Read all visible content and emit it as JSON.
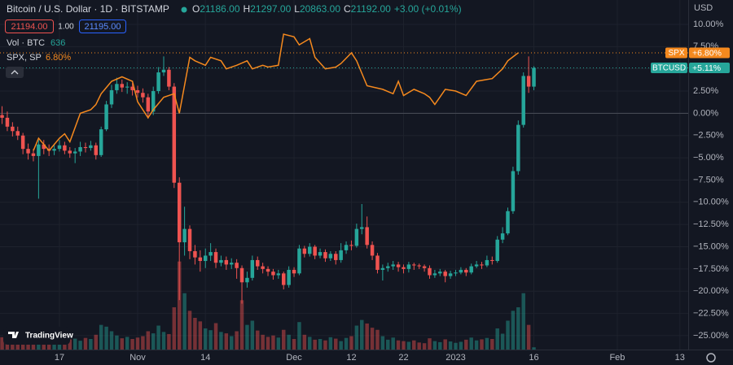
{
  "chart_data": {
    "type": "candlestick",
    "title": "Bitcoin / U.S. Dollar · 1D · BITSTAMP",
    "up_color": "#26a69a",
    "down_color": "#ef5350",
    "grid": true,
    "y_axis_label": "USD",
    "xlim": [
      -0.4,
      131.6
    ],
    "xticks": [
      {
        "value": 11,
        "label": "17"
      },
      {
        "value": 26,
        "label": "Nov"
      },
      {
        "value": 39,
        "label": "14"
      },
      {
        "value": 56,
        "label": "Dec"
      },
      {
        "value": 67,
        "label": "12"
      },
      {
        "value": 77,
        "label": "22"
      },
      {
        "value": 87,
        "label": "2023"
      },
      {
        "value": 102,
        "label": "16"
      },
      {
        "value": 118,
        "label": "Feb"
      },
      {
        "value": 130,
        "label": "13"
      }
    ],
    "ylim": [
      -26.56,
      12.74
    ],
    "yticks": [
      {
        "value": 10,
        "label": "10.00%"
      },
      {
        "value": 7.5,
        "label": "7.50%"
      },
      {
        "value": 5,
        "label": "5.00%"
      },
      {
        "value": 2.5,
        "label": "2.50%"
      },
      {
        "value": 0,
        "label": "0.00%"
      },
      {
        "value": -2.5,
        "label": "−2.50%"
      },
      {
        "value": -5,
        "label": "−5.00%"
      },
      {
        "value": -7.5,
        "label": "−7.50%"
      },
      {
        "value": -10,
        "label": "−10.00%"
      },
      {
        "value": -12.5,
        "label": "−12.50%"
      },
      {
        "value": -15,
        "label": "−15.00%"
      },
      {
        "value": -17.5,
        "label": "−17.50%"
      },
      {
        "value": -20,
        "label": "−20.00%"
      },
      {
        "value": -22.5,
        "label": "−22.50%"
      },
      {
        "value": -25,
        "label": "−25.00%"
      }
    ],
    "open": [
      -0.2,
      -0.5,
      -1.5,
      -2.0,
      -2.5,
      -4.0,
      -4.5,
      -4.8,
      -3.5,
      -4.0,
      -4.2,
      -4.0,
      -3.6,
      -4.2,
      -4.5,
      -4.3,
      -3.8,
      -3.9,
      -3.6,
      -4.7,
      -1.8,
      1.0,
      2.6,
      3.3,
      2.9,
      3.0,
      2.6,
      2.3,
      1.8,
      0.2,
      2.5,
      4.6,
      4.9,
      3.0,
      -7.8,
      -14.5,
      -13.0,
      -15.5,
      -16.2,
      -16.6,
      -16.0,
      -15.6,
      -16.8,
      -16.5,
      -17.0,
      -16.8,
      -17.4,
      -19.0,
      -18.5,
      -16.5,
      -17.2,
      -17.5,
      -17.8,
      -18.2,
      -18.0,
      -19.3,
      -17.6,
      -18.0,
      -15.2,
      -15.8,
      -15.0,
      -16.0,
      -15.6,
      -16.3,
      -15.8,
      -16.5,
      -15.4,
      -14.8,
      -14.9,
      -13.0,
      -12.8,
      -14.8,
      -16.0,
      -17.6,
      -17.4,
      -17.2,
      -17.0,
      -17.3,
      -17.5,
      -17.0,
      -17.1,
      -17.2,
      -17.4,
      -18.2,
      -18.0,
      -17.8,
      -18.3,
      -18.0,
      -17.9,
      -17.6,
      -17.9,
      -17.2,
      -17.0,
      -17.1,
      -16.5,
      -16.6,
      -14.2,
      -13.5,
      -11.0,
      -6.5,
      -1.3,
      4.2,
      3.0
    ],
    "high": [
      0.8,
      0.2,
      -1.0,
      -1.5,
      -2.2,
      -3.4,
      -4.0,
      -3.0,
      -3.0,
      -3.5,
      -3.4,
      -3.0,
      -3.2,
      -3.8,
      -3.9,
      -3.2,
      -3.3,
      -3.1,
      -3.3,
      -1.5,
      1.4,
      3.2,
      4.0,
      3.8,
      3.5,
      3.4,
      3.1,
      2.8,
      2.2,
      3.0,
      5.2,
      6.4,
      5.2,
      3.4,
      -7.2,
      -10.5,
      -12.6,
      -14.8,
      -15.4,
      -15.2,
      -14.6,
      -15.2,
      -16.0,
      -16.1,
      -16.3,
      -16.4,
      -17.1,
      -17.8,
      -16.0,
      -16.1,
      -16.8,
      -17.2,
      -17.5,
      -17.6,
      -17.8,
      -17.2,
      -17.3,
      -14.8,
      -14.9,
      -14.6,
      -14.8,
      -15.2,
      -15.3,
      -15.5,
      -15.5,
      -14.6,
      -14.4,
      -14.3,
      -12.4,
      -10.2,
      -11.6,
      -14.4,
      -15.7,
      -17.0,
      -16.8,
      -16.6,
      -16.7,
      -17.0,
      -16.7,
      -16.8,
      -16.9,
      -17.0,
      -17.1,
      -17.6,
      -17.5,
      -17.6,
      -17.7,
      -17.6,
      -17.3,
      -17.4,
      -16.9,
      -16.6,
      -16.7,
      -16.0,
      -16.1,
      -13.8,
      -12.8,
      -10.6,
      -6.0,
      -0.8,
      4.6,
      6.4,
      5.3
    ],
    "low": [
      -1.2,
      -2.0,
      -2.6,
      -3.0,
      -4.6,
      -5.2,
      -5.4,
      -9.6,
      -4.6,
      -4.8,
      -4.7,
      -4.3,
      -4.6,
      -5.0,
      -5.6,
      -4.8,
      -4.4,
      -4.2,
      -5.2,
      -4.9,
      -2.0,
      0.6,
      2.2,
      2.4,
      2.2,
      2.0,
      1.8,
      1.2,
      -0.6,
      -0.2,
      2.2,
      4.2,
      2.6,
      -8.4,
      -21.0,
      -16.0,
      -16.4,
      -17.0,
      -17.8,
      -17.4,
      -16.6,
      -17.4,
      -17.2,
      -17.6,
      -17.5,
      -18.6,
      -21.4,
      -19.6,
      -18.8,
      -17.6,
      -18.0,
      -18.3,
      -18.7,
      -18.6,
      -19.8,
      -19.6,
      -18.4,
      -18.2,
      -16.2,
      -16.1,
      -16.4,
      -16.3,
      -16.7,
      -16.6,
      -17.0,
      -16.8,
      -15.8,
      -15.4,
      -15.1,
      -13.6,
      -15.2,
      -16.5,
      -18.0,
      -18.8,
      -17.8,
      -17.6,
      -17.8,
      -18.0,
      -17.9,
      -17.6,
      -17.5,
      -17.8,
      -18.6,
      -18.5,
      -18.3,
      -19.0,
      -18.6,
      -18.3,
      -18.1,
      -18.3,
      -18.1,
      -17.4,
      -17.5,
      -17.3,
      -17.0,
      -16.8,
      -14.6,
      -13.7,
      -11.3,
      -6.9,
      -1.6,
      2.3,
      2.6
    ],
    "close": [
      -0.5,
      -1.5,
      -2.0,
      -2.5,
      -4.0,
      -4.5,
      -4.8,
      -3.5,
      -4.0,
      -4.2,
      -4.0,
      -3.6,
      -4.2,
      -4.5,
      -4.3,
      -3.8,
      -3.9,
      -3.6,
      -4.7,
      -1.8,
      1.0,
      2.6,
      3.3,
      2.9,
      3.0,
      2.6,
      2.3,
      1.8,
      0.2,
      2.5,
      4.6,
      4.9,
      3.0,
      -7.8,
      -14.5,
      -13.0,
      -15.5,
      -16.2,
      -16.6,
      -16.0,
      -15.6,
      -16.8,
      -16.5,
      -17.0,
      -16.8,
      -17.4,
      -19.0,
      -18.5,
      -16.5,
      -17.2,
      -17.5,
      -17.8,
      -18.2,
      -18.0,
      -19.3,
      -17.6,
      -18.0,
      -15.2,
      -15.8,
      -15.0,
      -16.0,
      -15.6,
      -16.3,
      -15.8,
      -16.5,
      -15.4,
      -14.8,
      -14.9,
      -13.0,
      -12.8,
      -14.8,
      -16.0,
      -17.6,
      -17.4,
      -17.2,
      -17.0,
      -17.3,
      -17.5,
      -17.0,
      -17.1,
      -17.2,
      -17.4,
      -18.2,
      -18.0,
      -17.8,
      -18.3,
      -18.0,
      -17.9,
      -17.6,
      -17.9,
      -17.2,
      -17.0,
      -17.1,
      -16.5,
      -16.6,
      -14.2,
      -13.5,
      -11.0,
      -6.5,
      -1.3,
      4.2,
      3.0,
      5.11
    ],
    "volume": {
      "name": "Vol · BTC",
      "ylim": [
        0,
        30000
      ],
      "values": [
        3500,
        4200,
        3000,
        2600,
        4800,
        3800,
        3200,
        4500,
        2800,
        2400,
        3000,
        3600,
        3200,
        2900,
        3100,
        2500,
        3300,
        3000,
        4200,
        7000,
        6500,
        5200,
        4000,
        3200,
        3600,
        3000,
        3400,
        3800,
        5200,
        4600,
        6800,
        5000,
        4400,
        12000,
        25000,
        16000,
        11000,
        9000,
        8000,
        6000,
        5500,
        7500,
        5000,
        4600,
        3800,
        5200,
        14000,
        7000,
        8200,
        5400,
        4200,
        3600,
        4000,
        3400,
        5600,
        4200,
        3000,
        7800,
        4200,
        3600,
        2800,
        3000,
        2600,
        3500,
        3100,
        2400,
        3300,
        3800,
        6800,
        8400,
        7400,
        6200,
        5600,
        3800,
        2800,
        3400,
        2600,
        2400,
        2200,
        2600,
        2000,
        1800,
        3200,
        2400,
        2100,
        2900,
        2300,
        1900,
        2200,
        2800,
        3400,
        2600,
        2900,
        3300,
        3000,
        6000,
        4500,
        8200,
        11000,
        12000,
        16000,
        7000,
        636
      ]
    },
    "overlay": {
      "name": "SPX, SP",
      "color": "#f5891e",
      "x": [
        6,
        7,
        9,
        11,
        12,
        13,
        15,
        17,
        18,
        19,
        21,
        23,
        25,
        26,
        28,
        29,
        31,
        33,
        34,
        36,
        37,
        39,
        40,
        42,
        43,
        45,
        47,
        48,
        50,
        51,
        53,
        54,
        56,
        57,
        59,
        60,
        62,
        64,
        65,
        67,
        68,
        70,
        73,
        75,
        76,
        77,
        79,
        81,
        82,
        83,
        85,
        87,
        89,
        91,
        93,
        94,
        96,
        97,
        99
      ],
      "values": [
        -4.2,
        -2.8,
        -4.2,
        -2.8,
        -2.3,
        -3.2,
        0.0,
        0.4,
        1.0,
        2.2,
        3.6,
        4.1,
        3.6,
        1.3,
        -0.5,
        0.4,
        1.8,
        2.2,
        0.0,
        6.3,
        5.9,
        5.4,
        6.3,
        5.9,
        5.0,
        5.4,
        5.9,
        5.0,
        5.4,
        5.2,
        5.4,
        8.9,
        8.6,
        7.7,
        8.4,
        6.3,
        5.0,
        5.2,
        5.6,
        6.8,
        5.9,
        3.1,
        2.7,
        2.2,
        3.6,
        2.0,
        2.7,
        2.2,
        1.8,
        1.0,
        2.7,
        2.5,
        2.0,
        3.6,
        3.8,
        3.9,
        5.0,
        5.9,
        6.8
      ]
    }
  },
  "legend": {
    "ohlc": [
      {
        "label": "O",
        "value": "21186.00"
      },
      {
        "label": "H",
        "value": "21297.00"
      },
      {
        "label": "L",
        "value": "20863.00"
      },
      {
        "label": "C",
        "value": "21192.00"
      }
    ],
    "change": "+3.00 (+0.01%)",
    "sell": "21194.00",
    "spread": "1.00",
    "buy": "21195.00",
    "spx_value": "6.80%"
  },
  "price_tags": [
    {
      "name": "SPX",
      "label": "+6.80%"
    },
    {
      "name": "BTCUSD",
      "label": "+5.11%"
    }
  ],
  "logo": "TradingView"
}
